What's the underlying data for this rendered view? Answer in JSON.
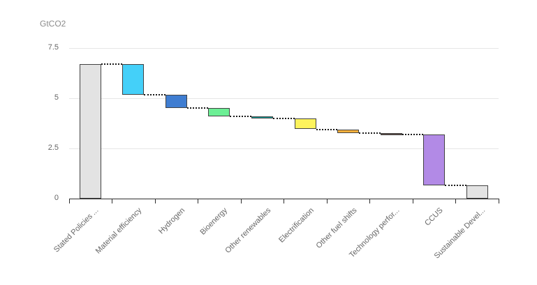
{
  "chart_data": {
    "type": "bar",
    "subtype": "waterfall",
    "title": "",
    "ylabel": "GtCO2",
    "xlabel": "",
    "ylim": [
      0,
      7.5
    ],
    "grid": "horizontal",
    "legend": "none",
    "connector_style": "dotted",
    "yticks": [
      {
        "value": 0,
        "label": "0"
      },
      {
        "value": 2.5,
        "label": "2.5"
      },
      {
        "value": 5,
        "label": "5"
      },
      {
        "value": 7.5,
        "label": "7.5"
      }
    ],
    "categories": [
      "Stated Policies ...",
      "Material efficiency",
      "Hydrogen",
      "Bioenergy",
      "Other renewables",
      "Electrification",
      "Other fuel shifts",
      "Technology perfor...",
      "CCUS",
      "Sustainable Devel..."
    ],
    "steps": [
      {
        "label": "Stated Policies ...",
        "role": "total",
        "start": 0,
        "end": 6.7,
        "delta": 6.7,
        "color": "#e3e3e3"
      },
      {
        "label": "Material efficiency",
        "role": "decrease",
        "start": 6.7,
        "end": 5.15,
        "delta": -1.55,
        "color": "#44d0f9"
      },
      {
        "label": "Hydrogen",
        "role": "decrease",
        "start": 5.15,
        "end": 4.5,
        "delta": -0.65,
        "color": "#3f7dd1"
      },
      {
        "label": "Bioenergy",
        "role": "decrease",
        "start": 4.5,
        "end": 4.1,
        "delta": -0.4,
        "color": "#6cef95"
      },
      {
        "label": "Other renewables",
        "role": "decrease",
        "start": 4.1,
        "end": 4.0,
        "delta": -0.1,
        "color": "#0c9e99"
      },
      {
        "label": "Electrification",
        "role": "decrease",
        "start": 4.0,
        "end": 3.45,
        "delta": -0.55,
        "color": "#fdf35c"
      },
      {
        "label": "Other fuel shifts",
        "role": "decrease",
        "start": 3.45,
        "end": 3.25,
        "delta": -0.2,
        "color": "#f9af3c"
      },
      {
        "label": "Technology perfor...",
        "role": "decrease",
        "start": 3.25,
        "end": 3.2,
        "delta": -0.05,
        "color": "#5d4a43"
      },
      {
        "label": "CCUS",
        "role": "decrease",
        "start": 3.2,
        "end": 0.65,
        "delta": -2.55,
        "color": "#b28ae6"
      },
      {
        "label": "Sustainable Devel...",
        "role": "total",
        "start": 0.65,
        "end": 0,
        "delta": 0.65,
        "color": "#e3e3e3"
      }
    ],
    "colors": {
      "bar_border": "#424242",
      "connector": "#1a1a1a",
      "grid": "#e6e6e6",
      "axis": "#2e2e2e",
      "tick_label": "#666666",
      "unit_label": "#8c8c8c",
      "background": "#ffffff"
    }
  }
}
